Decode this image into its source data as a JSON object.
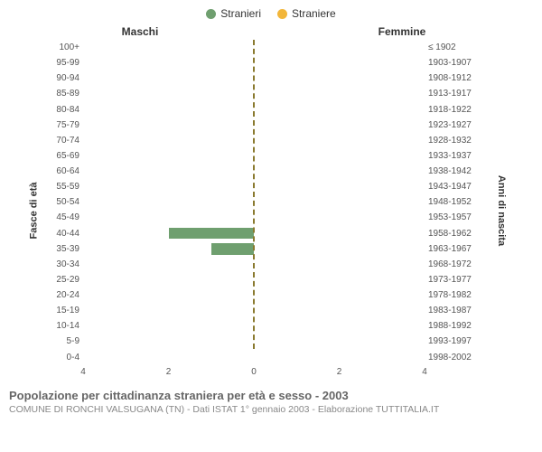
{
  "legend": {
    "items": [
      {
        "label": "Stranieri",
        "color": "#6f9f6f",
        "name": "legend-stranieri"
      },
      {
        "label": "Straniere",
        "color": "#f2b63a",
        "name": "legend-straniere"
      }
    ]
  },
  "headers": {
    "left": "Maschi",
    "right": "Femmine"
  },
  "axis_labels": {
    "left": "Fasce di età",
    "right": "Anni di nascita"
  },
  "chart": {
    "type": "population-pyramid",
    "max_value": 4,
    "xticks_left": [
      4,
      2,
      0
    ],
    "xticks_right": [
      0,
      2,
      4
    ],
    "bar_color_male": "#6f9f6f",
    "bar_color_female": "#f2b63a",
    "centerline_color": "#8a7a2f",
    "background_color": "#ffffff",
    "rows": [
      {
        "age": "100+",
        "birth": "≤ 1902",
        "male": 0,
        "female": 0
      },
      {
        "age": "95-99",
        "birth": "1903-1907",
        "male": 0,
        "female": 0
      },
      {
        "age": "90-94",
        "birth": "1908-1912",
        "male": 0,
        "female": 0
      },
      {
        "age": "85-89",
        "birth": "1913-1917",
        "male": 0,
        "female": 0
      },
      {
        "age": "80-84",
        "birth": "1918-1922",
        "male": 0,
        "female": 0
      },
      {
        "age": "75-79",
        "birth": "1923-1927",
        "male": 0,
        "female": 0
      },
      {
        "age": "70-74",
        "birth": "1928-1932",
        "male": 0,
        "female": 0
      },
      {
        "age": "65-69",
        "birth": "1933-1937",
        "male": 0,
        "female": 0
      },
      {
        "age": "60-64",
        "birth": "1938-1942",
        "male": 0,
        "female": 0
      },
      {
        "age": "55-59",
        "birth": "1943-1947",
        "male": 0,
        "female": 0
      },
      {
        "age": "50-54",
        "birth": "1948-1952",
        "male": 0,
        "female": 0
      },
      {
        "age": "45-49",
        "birth": "1953-1957",
        "male": 0,
        "female": 0
      },
      {
        "age": "40-44",
        "birth": "1958-1962",
        "male": 2,
        "female": 0
      },
      {
        "age": "35-39",
        "birth": "1963-1967",
        "male": 1,
        "female": 0
      },
      {
        "age": "30-34",
        "birth": "1968-1972",
        "male": 0,
        "female": 0
      },
      {
        "age": "25-29",
        "birth": "1973-1977",
        "male": 0,
        "female": 0
      },
      {
        "age": "20-24",
        "birth": "1978-1982",
        "male": 0,
        "female": 0
      },
      {
        "age": "15-19",
        "birth": "1983-1987",
        "male": 0,
        "female": 0
      },
      {
        "age": "10-14",
        "birth": "1988-1992",
        "male": 0,
        "female": 0
      },
      {
        "age": "5-9",
        "birth": "1993-1997",
        "male": 0,
        "female": 0
      },
      {
        "age": "0-4",
        "birth": "1998-2002",
        "male": 0,
        "female": 0
      }
    ]
  },
  "footer": {
    "title": "Popolazione per cittadinanza straniera per età e sesso - 2003",
    "subtitle": "COMUNE DI RONCHI VALSUGANA (TN) - Dati ISTAT 1° gennaio 2003 - Elaborazione TUTTITALIA.IT"
  }
}
